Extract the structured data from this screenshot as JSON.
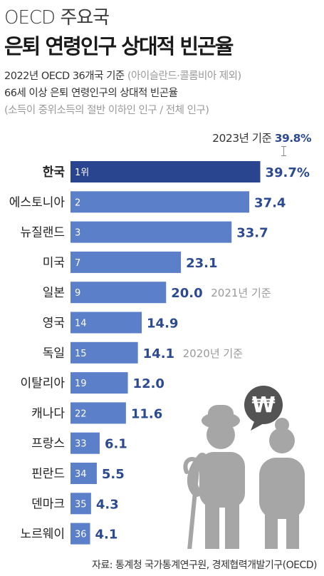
{
  "header": {
    "kicker": "OECD 주요국",
    "title": "은퇴 연령인구 상대적 빈곤율",
    "subtitle_main": "2022년 OECD 36개국 기준",
    "subtitle_paren": "(아이슬란드·콜롬비아 제외)",
    "description": "66세 이상 은퇴 연령인구의 상대적 빈곤율",
    "definition": "(소득이 중위소득의 절반 이하인 인구 / 전체 인구)"
  },
  "annotation_2023": {
    "label": "2023년 기준",
    "value": "39.8%"
  },
  "icon": {
    "name": "won-speech-bubble",
    "symbol": "₩"
  },
  "colors": {
    "highlight_bar": "#2a4590",
    "bar": "#5b7fc9",
    "value_text": "#2c4a91",
    "note_text": "#9a9a9a",
    "illustration": "#a6a6a6",
    "bubble": "#545454"
  },
  "chart_data": {
    "type": "bar",
    "orientation": "horizontal",
    "unit": "%",
    "xlim": [
      0,
      40
    ],
    "categories": [
      "한국",
      "에스토니아",
      "뉴질랜드",
      "미국",
      "일본",
      "영국",
      "독일",
      "이탈리아",
      "캐나다",
      "프랑스",
      "핀란드",
      "덴마크",
      "노르웨이"
    ],
    "ranks": [
      "1위",
      "2",
      "3",
      "7",
      "9",
      "14",
      "15",
      "19",
      "22",
      "33",
      "34",
      "35",
      "36"
    ],
    "values": [
      39.7,
      37.4,
      33.7,
      23.1,
      20.0,
      14.9,
      14.1,
      12.0,
      11.6,
      6.1,
      5.5,
      4.3,
      4.1
    ],
    "value_labels": [
      "39.7%",
      "37.4",
      "33.7",
      "23.1",
      "20.0",
      "14.9",
      "14.1",
      "12.0",
      "11.6",
      "6.1",
      "5.5",
      "4.3",
      "4.1"
    ],
    "notes": [
      "",
      "",
      "",
      "",
      "2021년 기준",
      "",
      "2020년 기준",
      "",
      "",
      "",
      "",
      "",
      ""
    ],
    "highlight_index": 0
  },
  "footer": {
    "source": "자료: 통계청 국가통계연구원, 경제협력개발기구(OECD)"
  }
}
